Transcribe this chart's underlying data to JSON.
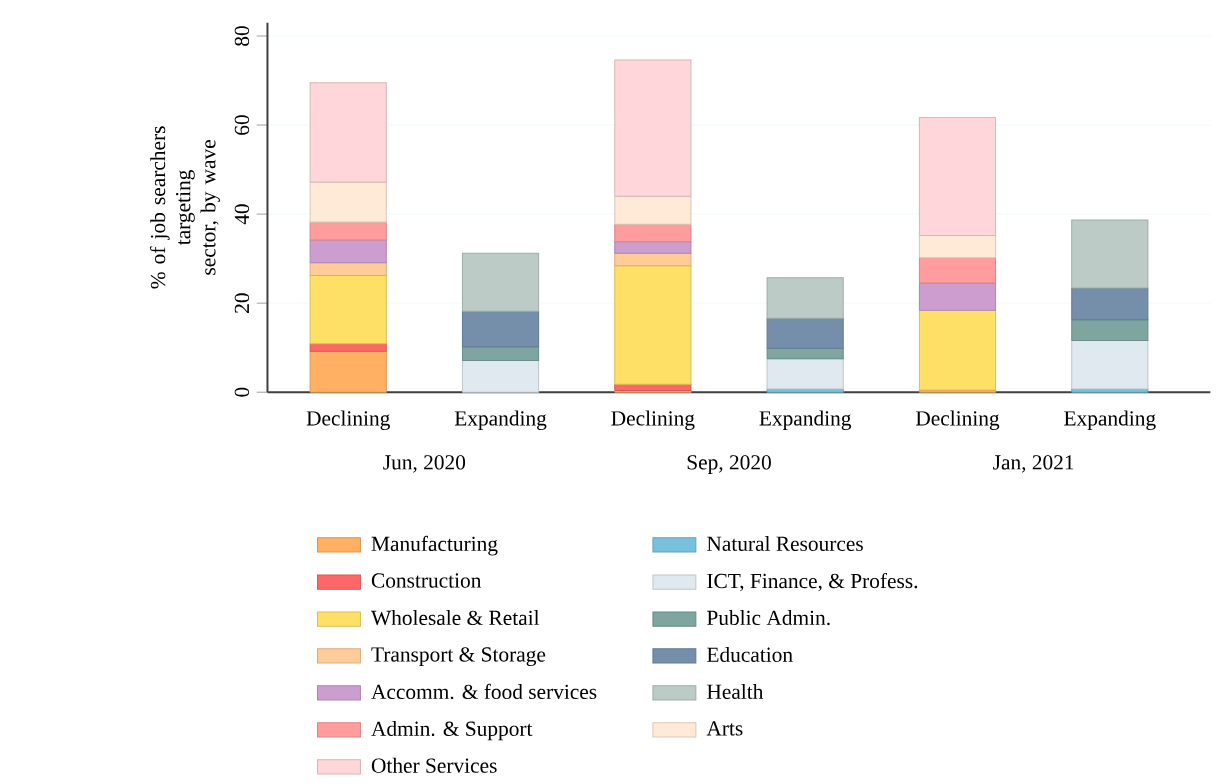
{
  "chart_data": {
    "type": "bar",
    "stacked": true,
    "ylabel": "% of job searchers targeting sector, by wave",
    "categories": [
      "Declining",
      "Expanding",
      "Declining",
      "Expanding",
      "Declining",
      "Expanding"
    ],
    "annotations": [
      "Jun, 2020",
      "Sep, 2020",
      "Jan, 2021"
    ],
    "ylim": [
      0,
      83
    ],
    "yticks": [
      0,
      20,
      40,
      60,
      80
    ],
    "grid": "y",
    "legend": "bottom",
    "series": [
      {
        "name": "Manufacturing",
        "color": "#ffb062",
        "values": [
          9.2,
          null,
          0.4,
          null,
          0.5,
          null
        ]
      },
      {
        "name": "Construction",
        "color": "#ff6666",
        "values": [
          1.7,
          null,
          1.4,
          null,
          null,
          null
        ]
      },
      {
        "name": "Wholesale & Retail",
        "color": "#ffe066",
        "values": [
          15.3,
          null,
          26.6,
          null,
          17.9,
          null
        ]
      },
      {
        "name": "Transport & Storage",
        "color": "#ffcc99",
        "values": [
          2.9,
          null,
          2.8,
          null,
          null,
          null
        ]
      },
      {
        "name": "Accomm. & food services",
        "color": "#cc9ecf",
        "values": [
          5.1,
          null,
          2.6,
          null,
          6.1,
          null
        ]
      },
      {
        "name": "Admin. & Support",
        "color": "#ff9c9e",
        "values": [
          4.0,
          null,
          3.9,
          null,
          5.7,
          null
        ]
      },
      {
        "name": "Natural Resources",
        "color": "#77c1da",
        "values": [
          null,
          null,
          null,
          0.7,
          null,
          0.7
        ]
      },
      {
        "name": "ICT, Finance, & Profess.",
        "color": "#e0e9f0",
        "values": [
          null,
          7.1,
          null,
          6.8,
          null,
          10.9
        ]
      },
      {
        "name": "Public Admin.",
        "color": "#7ea59f",
        "values": [
          null,
          3.1,
          null,
          2.4,
          null,
          4.7
        ]
      },
      {
        "name": "Education",
        "color": "#758fab",
        "values": [
          null,
          8.0,
          null,
          6.7,
          null,
          7.1
        ]
      },
      {
        "name": "Health",
        "color": "#bccbc6",
        "values": [
          null,
          13.0,
          null,
          9.1,
          null,
          15.3
        ]
      },
      {
        "name": "Arts",
        "color": "#ffead8",
        "values": [
          9.0,
          null,
          6.3,
          null,
          5.0,
          null
        ]
      },
      {
        "name": "Other Services",
        "color": "#ffd6d9",
        "values": [
          22.3,
          null,
          30.6,
          null,
          26.5,
          null
        ]
      }
    ]
  }
}
